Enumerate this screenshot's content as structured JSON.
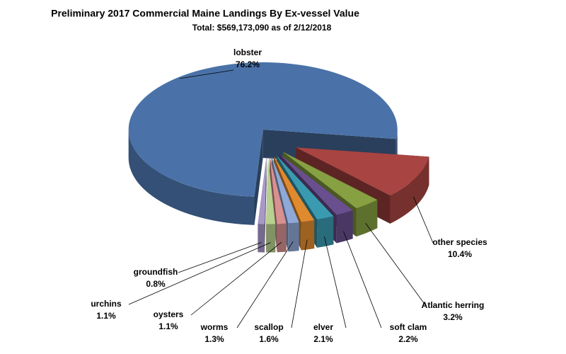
{
  "chart_data": {
    "type": "pie",
    "title": "Preliminary 2017 Commercial Maine Landings By Ex-vessel Value",
    "subtitle": "Total: $569,173,090 as of 2/12/2018",
    "categories": [
      "other species",
      "Atlantic herring",
      "soft clam",
      "elver",
      "scallop",
      "worms",
      "oysters",
      "urchins",
      "groundfish",
      "lobster"
    ],
    "values": [
      10.4,
      3.2,
      2.2,
      2.1,
      1.6,
      1.3,
      1.1,
      1.1,
      0.8,
      76.2
    ],
    "value_labels": [
      "10.4%",
      "3.2%",
      "2.2%",
      "2.1%",
      "1.6%",
      "1.3%",
      "1.1%",
      "1.1%",
      "0.8%",
      "76.2%"
    ],
    "colors": [
      "#a84442",
      "#86a042",
      "#6a4f8f",
      "#3a9ab0",
      "#e08a30",
      "#8ea8d8",
      "#d89090",
      "#b8d090",
      "#a898c8",
      "#4a72a8"
    ]
  }
}
